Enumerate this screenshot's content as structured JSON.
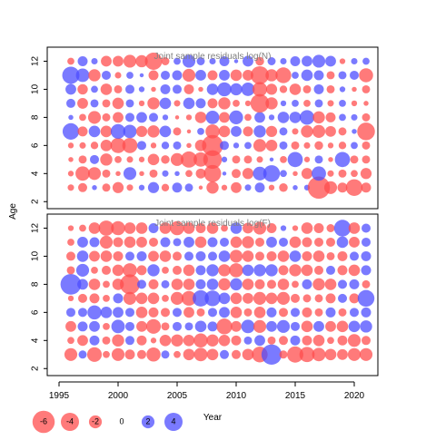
{
  "chart_data": {
    "type": "scatter",
    "subtype": "bubble",
    "xlabel": "Year",
    "ylabel": "Age",
    "xlim": [
      1994,
      2022
    ],
    "x_ticks": [
      1995,
      2000,
      2005,
      2010,
      2015,
      2020
    ],
    "x_tick_labels": [
      "1995",
      "2000",
      "2005",
      "2010",
      "2015",
      "2020"
    ],
    "colors": {
      "negative": "#ff4d4d",
      "positive": "#4d4dff",
      "alpha": 0.75
    },
    "years": [
      1996,
      1997,
      1998,
      1999,
      2000,
      2001,
      2002,
      2003,
      2004,
      2005,
      2006,
      2007,
      2008,
      2009,
      2010,
      2011,
      2012,
      2013,
      2014,
      2015,
      2016,
      2017,
      2018,
      2019,
      2020,
      2021
    ],
    "ages": [
      3,
      4,
      5,
      6,
      7,
      8,
      9,
      10,
      11,
      12
    ],
    "panels": [
      {
        "title": "Joint sample residuals log(N)",
        "ylim": [
          1.5,
          13.0
        ],
        "y_ticks": [
          2,
          4,
          6,
          8,
          10,
          12
        ],
        "y_tick_labels": [
          "2",
          "4",
          "6",
          "8",
          "10",
          "12"
        ],
        "residuals": [
          [
            -0.5,
            -1.0,
            0.3,
            -0.8,
            -1.5,
            -0.5,
            0.4,
            1.5,
            -0.7,
            1.2,
            0.8,
            -0.2,
            -1.8,
            -0.4,
            -1.4,
            0.5,
            1.2,
            -0.4,
            -0.9,
            0.3,
            0.4,
            -6.0,
            -2.0,
            -1.2,
            -3.4,
            -1.2
          ],
          [
            -0.4,
            -2.5,
            -2.0,
            -0.8,
            -0.3,
            2.0,
            -0.3,
            -0.8,
            0.5,
            0.3,
            -0.6,
            -1.2,
            -3.6,
            0.2,
            -1.0,
            -1.5,
            2.3,
            3.4,
            0.6,
            -0.3,
            -1.5,
            2.5,
            -0.5,
            -0.8,
            -0.6,
            -1.5
          ],
          [
            -0.3,
            -0.8,
            1.0,
            -1.8,
            -0.6,
            -0.5,
            -0.4,
            -1.6,
            -0.9,
            -2.0,
            -3.2,
            -2.5,
            -4.2,
            0.4,
            -0.8,
            -0.8,
            -0.5,
            0.2,
            -0.6,
            2.8,
            -0.4,
            0.8,
            -0.3,
            2.8,
            -0.8,
            -0.8
          ],
          [
            -0.4,
            -0.5,
            -0.7,
            -1.6,
            -2.8,
            -2.8,
            1.0,
            -0.4,
            0.7,
            0.8,
            -0.3,
            -1.6,
            -5.4,
            1.0,
            0.4,
            0.6,
            -2.0,
            -1.6,
            0.8,
            -0.8,
            -0.5,
            -0.9,
            -0.4,
            -0.7,
            0.6,
            -0.8
          ],
          [
            3.3,
            -1.2,
            1.6,
            -1.6,
            2.6,
            2.2,
            -1.5,
            -1.8,
            1.6,
            -0.8,
            -0.2,
            0.6,
            -2.4,
            -1.6,
            1.4,
            -1.2,
            1.8,
            -1.5,
            0.8,
            -0.5,
            -1.8,
            -2.0,
            -1.4,
            -0.8,
            0.3,
            -3.8
          ],
          [
            0.3,
            -0.6,
            -2.0,
            -0.8,
            -1.4,
            1.0,
            1.4,
            1.0,
            0.4,
            -0.2,
            -0.4,
            -1.6,
            2.2,
            -1.4,
            2.3,
            -0.6,
            1.4,
            0.4,
            1.6,
            1.6,
            2.6,
            -1.8,
            -1.2,
            0.6,
            0.5,
            -0.8
          ],
          [
            1.0,
            -1.4,
            0.8,
            -0.8,
            -1.6,
            0.8,
            -0.4,
            -1.8,
            1.6,
            -0.5,
            1.6,
            1.2,
            -1.2,
            -1.8,
            -0.6,
            -0.4,
            -4.2,
            -1.8,
            0.4,
            0.6,
            -0.6,
            0.8,
            -0.5,
            0.6,
            -0.4,
            -0.3
          ],
          [
            1.4,
            -1.3,
            0.6,
            -1.6,
            -0.8,
            1.0,
            0.4,
            -0.3,
            1.2,
            1.0,
            -1.2,
            -0.3,
            1.6,
            2.4,
            1.8,
            2.2,
            -2.6,
            -1.5,
            -0.7,
            -1.6,
            -0.8,
            1.2,
            -0.8,
            0.4,
            -0.3,
            -0.8
          ],
          [
            3.6,
            2.2,
            -1.8,
            1.0,
            -0.5,
            0.6,
            0.2,
            -1.2,
            1.0,
            1.2,
            -2.0,
            1.4,
            -1.2,
            1.4,
            -1.6,
            -1.4,
            -4.0,
            -1.8,
            -3.0,
            0.6,
            1.6,
            1.2,
            -0.8,
            0.8,
            1.0,
            -2.4
          ],
          [
            -0.6,
            1.2,
            0.5,
            -1.4,
            -1.4,
            -2.0,
            -1.8,
            -3.6,
            -0.8,
            0.6,
            2.0,
            0.8,
            0.5,
            1.2,
            0.2,
            1.4,
            -0.9,
            0.8,
            0.5,
            1.2,
            1.4,
            2.0,
            1.4,
            -0.4,
            0.5,
            0.6
          ]
        ]
      },
      {
        "title": "Joint sample residuals log(F)",
        "ylim": [
          1.5,
          13.0
        ],
        "y_ticks": [
          2,
          4,
          6,
          8,
          10,
          12
        ],
        "y_tick_labels": [
          "2",
          "4",
          "6",
          "8",
          "10",
          "12"
        ],
        "residuals": [
          [
            -2.0,
            0.8,
            -2.6,
            -0.6,
            -2.0,
            -1.2,
            -1.0,
            -2.4,
            0.8,
            -0.6,
            -1.6,
            -2.2,
            -1.6,
            1.0,
            -1.0,
            -1.6,
            -3.0,
            5.0,
            -0.8,
            -3.2,
            -2.8,
            -2.2,
            -1.6,
            -1.4,
            -2.0,
            -2.0
          ],
          [
            -0.6,
            -1.4,
            1.2,
            -0.8,
            -1.8,
            1.0,
            -1.2,
            -0.4,
            -1.6,
            -1.8,
            -1.6,
            -2.4,
            -1.8,
            -1.6,
            -1.2,
            0.8,
            1.4,
            -0.8,
            -1.0,
            1.2,
            -1.2,
            -1.6,
            -0.6,
            -1.2,
            -2.0,
            -1.0
          ],
          [
            -1.4,
            1.2,
            1.4,
            -0.6,
            2.2,
            1.0,
            -1.4,
            -2.6,
            -0.8,
            1.0,
            0.8,
            1.6,
            1.2,
            -3.0,
            -1.4,
            2.2,
            -2.0,
            1.4,
            2.0,
            1.0,
            -1.6,
            1.4,
            -1.4,
            -1.6,
            1.6,
            1.8
          ],
          [
            1.0,
            1.0,
            2.4,
            1.6,
            1.4,
            1.0,
            -1.6,
            -1.2,
            -1.0,
            1.0,
            -1.4,
            -0.8,
            1.0,
            1.4,
            -1.6,
            -0.8,
            -1.6,
            1.2,
            -1.0,
            1.0,
            -1.2,
            -0.8,
            1.2,
            -0.8,
            1.0,
            1.2
          ],
          [
            -0.4,
            -1.0,
            -1.2,
            -0.6,
            1.2,
            -2.0,
            -1.6,
            -1.6,
            -0.6,
            -2.0,
            -2.6,
            3.2,
            3.0,
            1.6,
            -1.6,
            -1.4,
            -2.0,
            -1.6,
            -2.0,
            -1.0,
            -0.8,
            -0.8,
            -1.2,
            1.0,
            -1.2,
            3.4
          ],
          [
            5.2,
            1.4,
            -1.6,
            -0.6,
            -1.6,
            -4.8,
            1.0,
            -1.2,
            0.8,
            -1.6,
            -1.6,
            1.2,
            1.6,
            -1.8,
            1.8,
            -1.6,
            -1.2,
            -1.0,
            -1.6,
            -0.6,
            1.2,
            -1.8,
            -1.6,
            1.0,
            1.2,
            -0.8
          ],
          [
            -0.8,
            2.0,
            -0.6,
            -1.0,
            -1.6,
            -2.4,
            -1.2,
            1.8,
            -0.6,
            -1.0,
            -1.6,
            1.2,
            1.8,
            -1.8,
            -2.4,
            1.6,
            1.8,
            1.8,
            -1.2,
            -1.8,
            -1.6,
            -1.0,
            1.0,
            -1.2,
            -1.6,
            1.2
          ],
          [
            -1.0,
            1.6,
            -1.4,
            -1.6,
            -1.2,
            1.0,
            1.2,
            -1.4,
            -1.6,
            -1.0,
            1.0,
            1.2,
            1.0,
            1.6,
            -2.0,
            -1.6,
            -1.0,
            -1.2,
            -1.6,
            1.6,
            -1.2,
            -1.6,
            -0.8,
            -1.2,
            1.0,
            1.2
          ],
          [
            -0.6,
            1.4,
            1.2,
            -2.0,
            -1.2,
            -1.6,
            -1.4,
            -1.0,
            1.2,
            0.8,
            1.4,
            -1.6,
            1.2,
            1.0,
            -1.6,
            -1.8,
            -1.0,
            1.4,
            1.0,
            -1.6,
            -1.2,
            -1.0,
            -1.0,
            1.6,
            -1.4,
            1.0
          ],
          [
            -0.4,
            -0.6,
            -1.6,
            -2.8,
            -2.4,
            -1.6,
            -1.6,
            1.2,
            -1.6,
            -2.4,
            -1.6,
            -1.2,
            -1.6,
            -0.6,
            1.6,
            -1.4,
            -2.0,
            -1.2,
            0.4,
            -0.4,
            -1.6,
            -1.2,
            -0.8,
            3.4,
            -1.6,
            1.0
          ]
        ]
      }
    ],
    "legend": {
      "placement": "bottom-left",
      "entries": [
        {
          "label": "-6",
          "value": -6
        },
        {
          "label": "-4",
          "value": -4
        },
        {
          "label": "-2",
          "value": -2
        },
        {
          "label": "0",
          "value": 0
        },
        {
          "label": "2",
          "value": 2
        },
        {
          "label": "4",
          "value": 4
        }
      ]
    },
    "grid": false
  }
}
